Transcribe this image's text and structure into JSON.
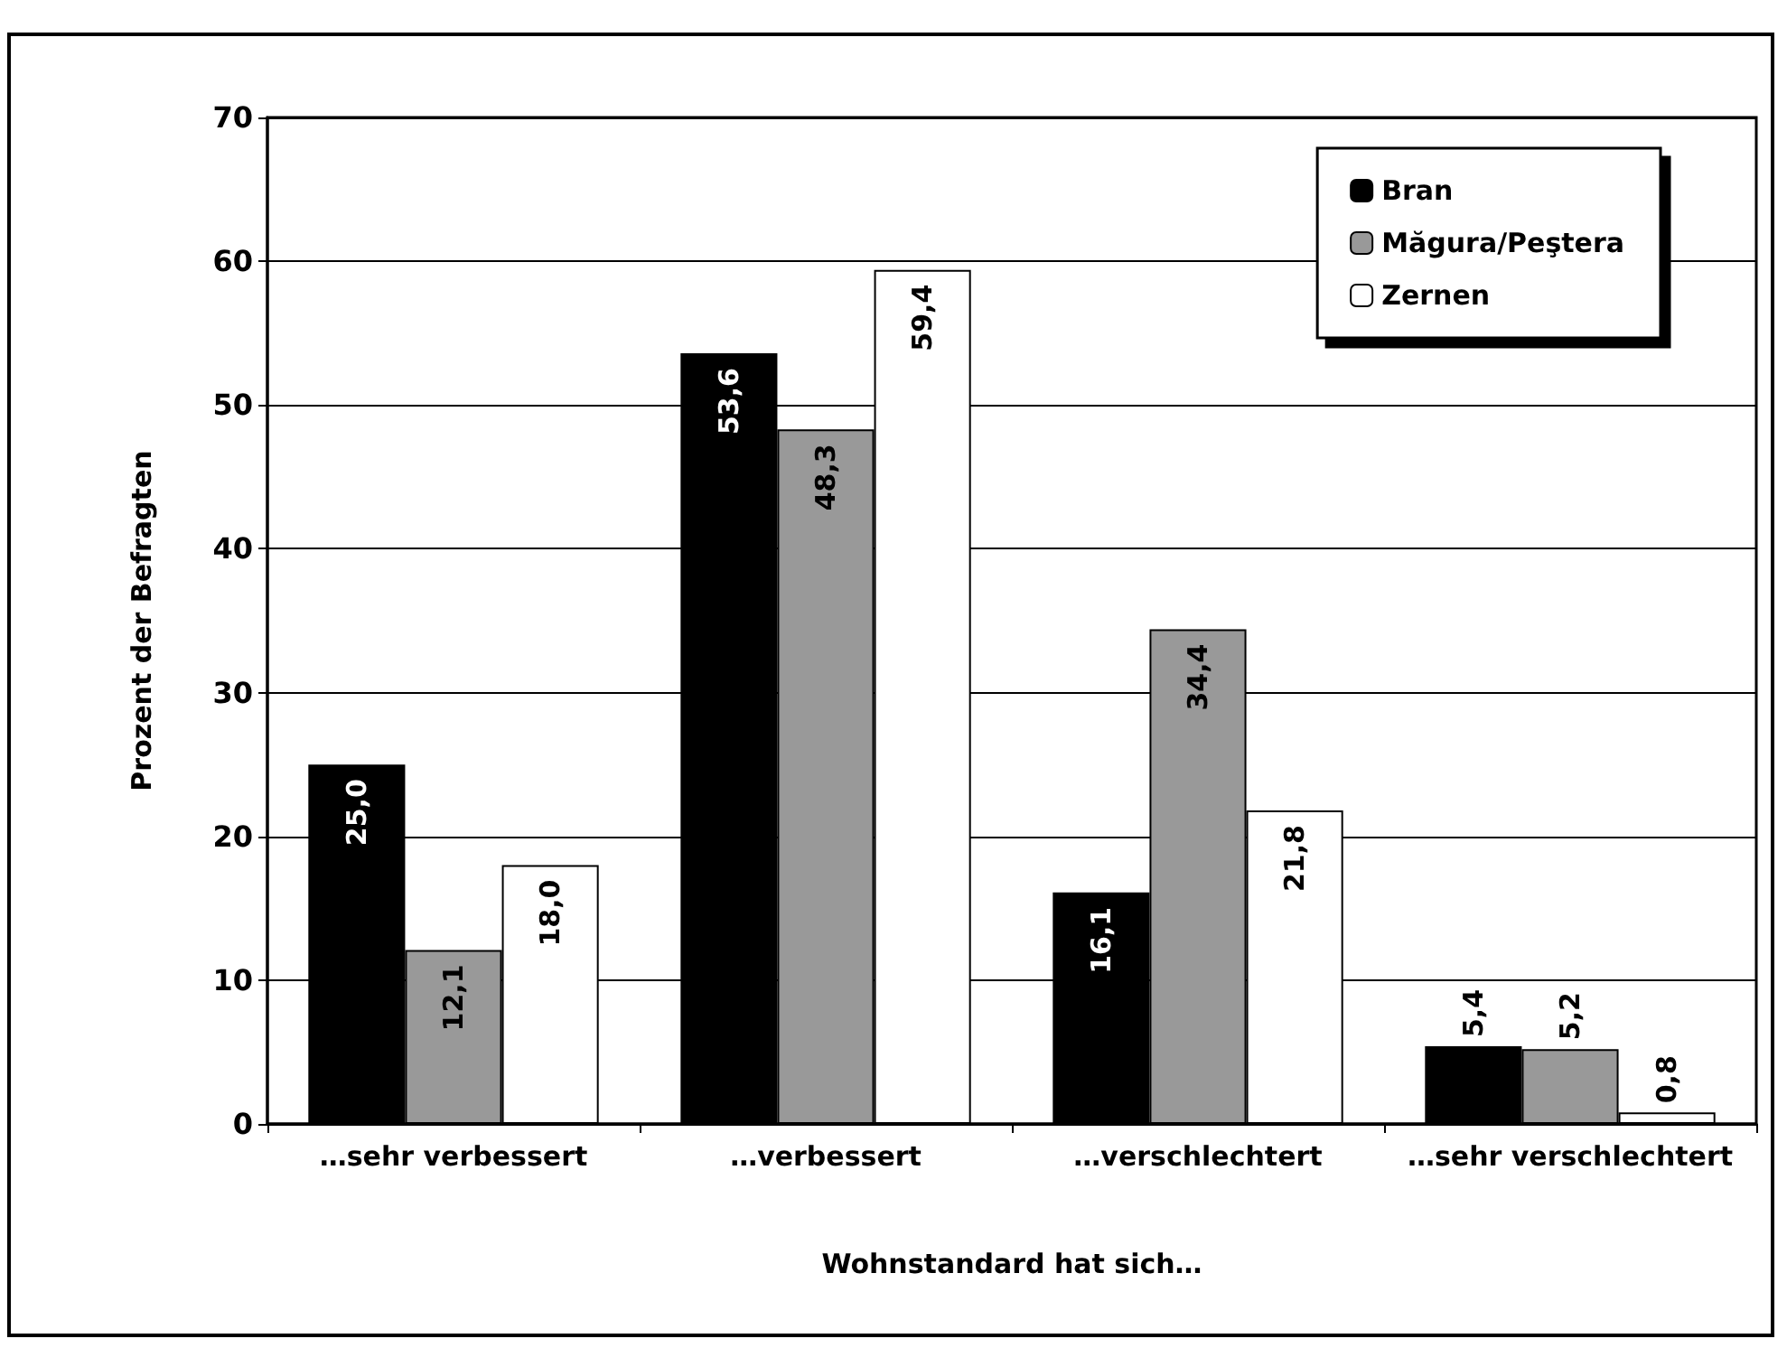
{
  "chart_data": {
    "type": "bar",
    "xlabel": "Wohnstandard hat sich…",
    "ylabel": "Prozent der Befragten",
    "categories": [
      "…sehr verbessert",
      "…verbessert",
      "…verschlechtert",
      "…sehr verschlechtert"
    ],
    "series": [
      {
        "name": "Bran",
        "color": "#000000",
        "values": [
          25.0,
          53.6,
          16.1,
          5.4
        ],
        "value_labels": [
          "25,0",
          "53,6",
          "16,1",
          "5,4"
        ]
      },
      {
        "name": "Măgura/Peştera",
        "color": "#999999",
        "values": [
          12.1,
          48.3,
          34.4,
          5.2
        ],
        "value_labels": [
          "12,1",
          "48,3",
          "34,4",
          "5,2"
        ]
      },
      {
        "name": "Zernen",
        "color": "#ffffff",
        "values": [
          18.0,
          59.4,
          21.8,
          0.8
        ],
        "value_labels": [
          "18,0",
          "59,4",
          "21,8",
          "0,8"
        ]
      }
    ],
    "ylim": [
      0,
      70
    ],
    "yticks": [
      0,
      10,
      20,
      30,
      40,
      50,
      60,
      70
    ],
    "grid": "y",
    "legend": "top right"
  }
}
